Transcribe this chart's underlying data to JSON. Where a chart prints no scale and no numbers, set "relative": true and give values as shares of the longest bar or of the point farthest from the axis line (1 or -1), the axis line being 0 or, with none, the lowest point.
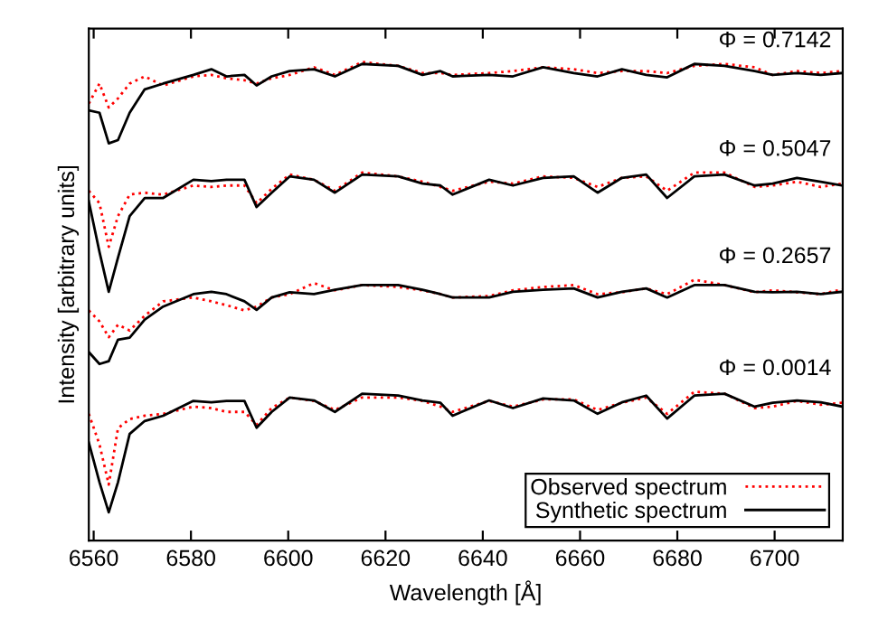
{
  "chart_data": {
    "type": "line",
    "relative": true,
    "xlabel": "Wavelength [Å]",
    "ylabel": "Intensity [arbitrary units]",
    "x": [
      6559.0,
      6561.2,
      6563.1,
      6565.0,
      6567.4,
      6570.5,
      6574.3,
      6580.5,
      6584.2,
      6587.3,
      6591.0,
      6593.5,
      6596.6,
      6600.3,
      6605.3,
      6609.6,
      6615.2,
      6622.6,
      6627.6,
      6631.3,
      6633.8,
      6641.3,
      6646.2,
      6652.4,
      6658.7,
      6663.6,
      6668.6,
      6673.6,
      6677.9,
      6683.5,
      6689.7,
      6695.9,
      6699.6,
      6704.6,
      6709.5,
      6713.9
    ],
    "xlim": [
      6559,
      6714
    ],
    "xticks": [
      6560,
      6580,
      6600,
      6620,
      6640,
      6660,
      6680,
      6700
    ],
    "legend": "bottom right",
    "grid": false,
    "series": [
      {
        "name": "Observed spectrum",
        "color": "#ff0000",
        "line_style": "dotted",
        "values": [
          0.913,
          0.955,
          0.905,
          0.924,
          0.955,
          0.97,
          0.951,
          0.97,
          0.973,
          0.966,
          0.962,
          0.955,
          0.966,
          0.973,
          0.989,
          0.973,
          1.0,
          0.992,
          0.977,
          0.977,
          0.973,
          0.977,
          0.981,
          0.989,
          0.985,
          0.977,
          0.981,
          0.981,
          0.977,
          0.992,
          0.996,
          0.989,
          0.973,
          0.981,
          0.977,
          0.981
        ]
      },
      {
        "name": "Synthetic spectrum",
        "color": "#000000",
        "line_style": "solid",
        "values": [
          0.899,
          0.894,
          0.83,
          0.837,
          0.894,
          0.943,
          0.955,
          0.973,
          0.985,
          0.97,
          0.973,
          0.951,
          0.97,
          0.981,
          0.985,
          0.97,
          0.996,
          0.992,
          0.973,
          0.981,
          0.97,
          0.973,
          0.97,
          0.989,
          0.977,
          0.97,
          0.985,
          0.973,
          0.968,
          0.996,
          0.992,
          0.981,
          0.973,
          0.977,
          0.973,
          0.977
        ]
      },
      {
        "color": "#ff0000",
        "line_style": "dotted",
        "values": [
          0.731,
          0.705,
          0.614,
          0.678,
          0.723,
          0.727,
          0.723,
          0.742,
          0.739,
          0.742,
          0.742,
          0.705,
          0.735,
          0.765,
          0.754,
          0.731,
          0.769,
          0.761,
          0.75,
          0.739,
          0.731,
          0.75,
          0.746,
          0.761,
          0.758,
          0.739,
          0.758,
          0.761,
          0.731,
          0.769,
          0.769,
          0.739,
          0.742,
          0.75,
          0.739,
          0.746
        ]
      },
      {
        "color": "#000000",
        "line_style": "solid",
        "values": [
          0.709,
          0.603,
          0.52,
          0.591,
          0.678,
          0.716,
          0.716,
          0.754,
          0.751,
          0.754,
          0.754,
          0.697,
          0.727,
          0.761,
          0.754,
          0.727,
          0.765,
          0.761,
          0.746,
          0.742,
          0.723,
          0.754,
          0.742,
          0.758,
          0.761,
          0.727,
          0.758,
          0.765,
          0.716,
          0.761,
          0.765,
          0.742,
          0.746,
          0.758,
          0.75,
          0.742
        ]
      },
      {
        "color": "#ff0000",
        "line_style": "dotted",
        "values": [
          0.481,
          0.458,
          0.425,
          0.451,
          0.439,
          0.47,
          0.5,
          0.508,
          0.5,
          0.492,
          0.481,
          0.489,
          0.508,
          0.515,
          0.538,
          0.523,
          0.534,
          0.53,
          0.523,
          0.515,
          0.508,
          0.511,
          0.523,
          0.53,
          0.534,
          0.515,
          0.519,
          0.527,
          0.515,
          0.545,
          0.534,
          0.519,
          0.523,
          0.519,
          0.515,
          0.525
        ]
      },
      {
        "color": "#000000",
        "line_style": "solid",
        "values": [
          0.394,
          0.369,
          0.375,
          0.42,
          0.424,
          0.462,
          0.489,
          0.515,
          0.52,
          0.515,
          0.5,
          0.482,
          0.508,
          0.519,
          0.515,
          0.524,
          0.534,
          0.534,
          0.524,
          0.515,
          0.508,
          0.508,
          0.52,
          0.524,
          0.527,
          0.508,
          0.52,
          0.527,
          0.508,
          0.534,
          0.534,
          0.52,
          0.519,
          0.52,
          0.515,
          0.52
        ]
      },
      {
        "color": "#ff0000",
        "line_style": "dotted",
        "values": [
          0.265,
          0.201,
          0.117,
          0.235,
          0.254,
          0.261,
          0.265,
          0.28,
          0.277,
          0.269,
          0.269,
          0.242,
          0.277,
          0.299,
          0.292,
          0.273,
          0.299,
          0.299,
          0.292,
          0.28,
          0.269,
          0.292,
          0.28,
          0.295,
          0.295,
          0.273,
          0.288,
          0.299,
          0.265,
          0.311,
          0.307,
          0.277,
          0.28,
          0.292,
          0.284,
          0.288
        ]
      },
      {
        "color": "#000000",
        "line_style": "solid",
        "values": [
          0.205,
          0.122,
          0.059,
          0.122,
          0.223,
          0.25,
          0.261,
          0.292,
          0.289,
          0.292,
          0.292,
          0.236,
          0.269,
          0.299,
          0.293,
          0.269,
          0.307,
          0.303,
          0.293,
          0.288,
          0.261,
          0.293,
          0.277,
          0.297,
          0.293,
          0.265,
          0.289,
          0.303,
          0.255,
          0.303,
          0.307,
          0.28,
          0.288,
          0.293,
          0.289,
          0.28
        ]
      }
    ],
    "annotations": [
      "Φ = 0.7142",
      "Φ = 0.5047",
      "Φ = 0.2657",
      "Φ = 0.0014"
    ]
  }
}
